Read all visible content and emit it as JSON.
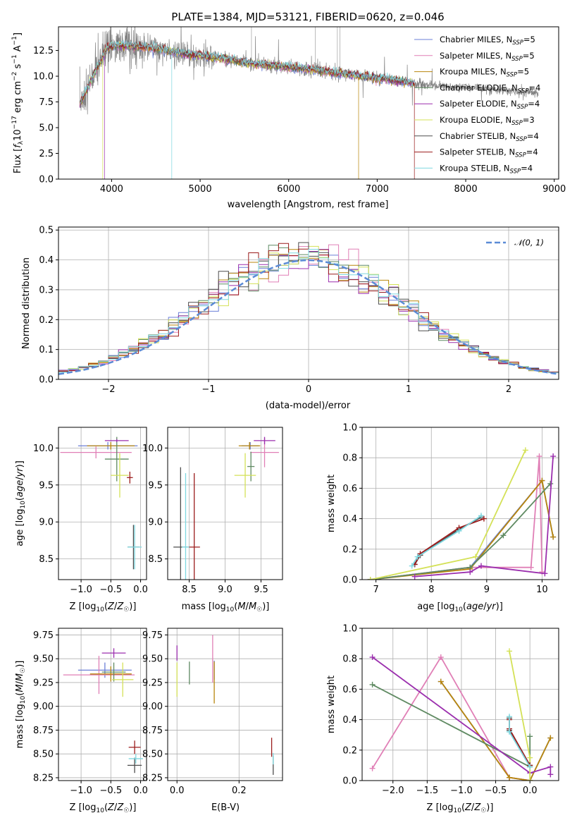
{
  "figure": {
    "title": "PLATE=1384, MJD=53121, FIBERID=0620, z=0.046",
    "legend": [
      {
        "label": "Chabrier MILES, N",
        "sub": "SSP",
        "suffix": "=5",
        "color": "#6b7fd7"
      },
      {
        "label": "Salpeter MILES, N",
        "sub": "SSP",
        "suffix": "=5",
        "color": "#e07fb6"
      },
      {
        "label": "Kroupa MILES, N",
        "sub": "SSP",
        "suffix": "=5",
        "color": "#b8860b"
      },
      {
        "label": "Chabrier ELODIE, N",
        "sub": "SSP",
        "suffix": "=4",
        "color": "#5f8a62"
      },
      {
        "label": "Salpeter ELODIE, N",
        "sub": "SSP",
        "suffix": "=4",
        "color": "#9b2fae"
      },
      {
        "label": "Kroupa ELODIE, N",
        "sub": "SSP",
        "suffix": "=3",
        "color": "#d4e157"
      },
      {
        "label": "Chabrier STELIB, N",
        "sub": "SSP",
        "suffix": "=4",
        "color": "#4d4d4d"
      },
      {
        "label": "Salpeter STELIB, N",
        "sub": "SSP",
        "suffix": "=4",
        "color": "#9b1c1c"
      },
      {
        "label": "Kroupa STELIB, N",
        "sub": "SSP",
        "suffix": "=4",
        "color": "#7fd8e0"
      }
    ],
    "hist_legend": "𝒩(0, 1)"
  },
  "chart_data": [
    {
      "type": "line",
      "id": "spectrum",
      "title": "PLATE=1384, MJD=53121, FIBERID=0620, z=0.046",
      "xlabel": "wavelength [Angstrom, rest frame]",
      "ylabel": "Flux [f_λ 10^-17 erg cm^-2 s^-1 A^-1]",
      "xlim": [
        3400,
        9050
      ],
      "ylim": [
        0,
        14.8
      ],
      "xticks": [
        4000,
        5000,
        6000,
        7000,
        8000,
        9000
      ],
      "yticks": [
        0.0,
        2.5,
        5.0,
        7.5,
        10.0,
        12.5
      ],
      "data_color": "#808080",
      "data_range": [
        3640,
        8820
      ],
      "model_range": [
        3640,
        7420
      ],
      "shape": {
        "x": [
          3640,
          3800,
          3950,
          4100,
          4400,
          4800,
          5200,
          5600,
          6000,
          6400,
          6800,
          7200,
          7420,
          7800,
          8200,
          8600,
          8820
        ],
        "y": [
          7.2,
          10.2,
          12.8,
          13.0,
          12.8,
          12.2,
          11.8,
          11.2,
          10.9,
          10.5,
          10.0,
          9.6,
          9.3,
          9.0,
          8.8,
          8.5,
          8.4
        ]
      },
      "grid": false,
      "legend_position": "upper right"
    },
    {
      "type": "histogram",
      "id": "residuals",
      "xlabel": "(data-model)/error",
      "ylabel": "Normed distribution",
      "xlim": [
        -2.5,
        2.5
      ],
      "ylim": [
        0,
        0.51
      ],
      "xticks": [
        -2,
        -1,
        0,
        1,
        2
      ],
      "yticks": [
        0.0,
        0.1,
        0.2,
        0.3,
        0.4,
        0.5
      ],
      "bin_width": 0.1,
      "reference_curve": "normal(0,1)",
      "reference_color": "#5b8bd6",
      "grid": true,
      "legend_position": "upper right"
    },
    {
      "type": "scatter",
      "id": "age-vs-Z",
      "xlabel": "Z [log10(Z/Z☉)]",
      "ylabel": "age [log10(age/yr)]",
      "xlim": [
        -1.38,
        0.1
      ],
      "ylim": [
        8.22,
        10.28
      ],
      "xticks": [
        -1.0,
        -0.5,
        0.0
      ],
      "yticks": [
        8.5,
        9.0,
        9.5,
        10.0
      ],
      "grid": true,
      "points": [
        {
          "series": "Chabrier MILES",
          "x": -0.55,
          "xerr": 0.5,
          "y": 10.03,
          "yerr": 0.05
        },
        {
          "series": "Salpeter MILES",
          "x": -0.75,
          "xerr": 0.6,
          "y": 9.94,
          "yerr": 0.08
        },
        {
          "series": "Kroupa MILES",
          "x": -0.5,
          "xerr": 0.4,
          "y": 10.03,
          "yerr": 0.05
        },
        {
          "series": "Chabrier ELODIE",
          "x": -0.4,
          "xerr": 0.2,
          "y": 9.85,
          "yerr": 0.3
        },
        {
          "series": "Salpeter ELODIE",
          "x": -0.4,
          "xerr": 0.2,
          "y": 10.1,
          "yerr": 0.02
        },
        {
          "series": "Kroupa ELODIE",
          "x": -0.35,
          "xerr": 0.15,
          "y": 9.63,
          "yerr": 0.3
        },
        {
          "series": "Chabrier STELIB",
          "x": -0.12,
          "xerr": 0.1,
          "y": 8.66,
          "yerr": 0.3
        },
        {
          "series": "Salpeter STELIB",
          "x": -0.18,
          "xerr": 0.05,
          "y": 9.6,
          "yerr": 0.08
        },
        {
          "series": "Kroupa STELIB",
          "x": -0.1,
          "xerr": 0.12,
          "y": 8.66,
          "yerr": 0.3
        }
      ]
    },
    {
      "type": "scatter",
      "id": "age-vs-mass",
      "xlabel": "mass [log10(M/M☉)]",
      "ylabel": "",
      "xlim": [
        8.2,
        9.8
      ],
      "ylim": [
        8.22,
        10.28
      ],
      "xticks": [
        8.5,
        9.0,
        9.5
      ],
      "yticks": [
        8.5,
        9.0,
        9.5,
        10.0
      ],
      "grid": true,
      "points": [
        {
          "series": "Chabrier MILES",
          "x": 9.35,
          "xerr": 0.12,
          "y": 10.03,
          "yerr": 0.05
        },
        {
          "series": "Salpeter MILES",
          "x": 9.55,
          "xerr": 0.2,
          "y": 9.94,
          "yerr": 0.2
        },
        {
          "series": "Kroupa MILES",
          "x": 9.34,
          "xerr": 0.15,
          "y": 10.03,
          "yerr": 0.05
        },
        {
          "series": "Chabrier ELODIE",
          "x": 9.36,
          "xerr": 0.05,
          "y": 9.75,
          "yerr": 0.2
        },
        {
          "series": "Salpeter ELODIE",
          "x": 9.55,
          "xerr": 0.15,
          "y": 10.1,
          "yerr": 0.05
        },
        {
          "series": "Kroupa ELODIE",
          "x": 9.28,
          "xerr": 0.15,
          "y": 9.63,
          "yerr": 0.3
        },
        {
          "series": "Chabrier STELIB",
          "x": 8.38,
          "xerr": 0.1,
          "y": 8.66,
          "yerr": 1.08
        },
        {
          "series": "Salpeter STELIB",
          "x": 8.57,
          "xerr": 0.08,
          "y": 8.66,
          "yerr": 1.0
        },
        {
          "series": "Kroupa STELIB",
          "x": 8.45,
          "xerr": 0.05,
          "y": 8.66,
          "yerr": 1.0
        }
      ]
    },
    {
      "type": "line",
      "id": "massweight-vs-age",
      "xlabel": "age [log10(age/yr)]",
      "ylabel": "mass weight",
      "xlim": [
        6.75,
        10.3
      ],
      "ylim": [
        0.0,
        1.0
      ],
      "xticks": [
        7,
        8,
        9,
        10
      ],
      "yticks": [
        0.0,
        0.2,
        0.4,
        0.6,
        0.8,
        1.0
      ],
      "grid": true,
      "series": [
        {
          "name": "Chabrier MILES",
          "x": [
            6.9,
            8.7,
            10.0,
            10.2
          ],
          "y": [
            0.0,
            0.08,
            0.65,
            0.28
          ]
        },
        {
          "name": "Salpeter MILES",
          "x": [
            6.9,
            8.7,
            9.8,
            9.95,
            10.0
          ],
          "y": [
            0.0,
            0.08,
            0.08,
            0.81,
            0.05
          ]
        },
        {
          "name": "Kroupa MILES",
          "x": [
            6.9,
            8.7,
            10.0,
            10.2
          ],
          "y": [
            0.0,
            0.07,
            0.65,
            0.28
          ]
        },
        {
          "name": "Chabrier ELODIE",
          "x": [
            6.9,
            8.7,
            9.3,
            10.15
          ],
          "y": [
            0.0,
            0.08,
            0.29,
            0.63
          ]
        },
        {
          "name": "Salpeter ELODIE",
          "x": [
            7.7,
            8.7,
            8.9,
            10.05,
            10.2
          ],
          "y": [
            0.02,
            0.05,
            0.09,
            0.04,
            0.81
          ]
        },
        {
          "name": "Kroupa ELODIE",
          "x": [
            6.9,
            8.8,
            9.7
          ],
          "y": [
            0.0,
            0.15,
            0.85
          ]
        },
        {
          "name": "Chabrier STELIB",
          "x": [
            7.7,
            7.8,
            8.5,
            8.9
          ],
          "y": [
            0.1,
            0.16,
            0.33,
            0.41
          ]
        },
        {
          "name": "Salpeter STELIB",
          "x": [
            7.7,
            7.8,
            8.5,
            8.95
          ],
          "y": [
            0.1,
            0.17,
            0.34,
            0.4
          ]
        },
        {
          "name": "Kroupa STELIB",
          "x": [
            7.65,
            7.75,
            8.5,
            8.9
          ],
          "y": [
            0.09,
            0.15,
            0.32,
            0.42
          ]
        }
      ]
    },
    {
      "type": "scatter",
      "id": "mass-vs-Z",
      "xlabel": "Z [log10(Z/Z☉)]",
      "ylabel": "mass [log10(M/M☉)]",
      "xlim": [
        -1.38,
        0.1
      ],
      "ylim": [
        8.22,
        9.82
      ],
      "xticks": [
        -1.0,
        -0.5,
        0.0
      ],
      "yticks": [
        8.25,
        8.5,
        8.75,
        9.0,
        9.25,
        9.5,
        9.75
      ],
      "grid": true,
      "points": [
        {
          "series": "Chabrier MILES",
          "x": -0.6,
          "xerr": 0.45,
          "y": 9.38,
          "yerr": 0.08
        },
        {
          "series": "Salpeter MILES",
          "x": -0.7,
          "xerr": 0.6,
          "y": 9.33,
          "yerr": 0.2
        },
        {
          "series": "Kroupa MILES",
          "x": -0.5,
          "xerr": 0.35,
          "y": 9.34,
          "yerr": 0.08
        },
        {
          "series": "Chabrier ELODIE",
          "x": -0.45,
          "xerr": 0.2,
          "y": 9.36,
          "yerr": 0.1
        },
        {
          "series": "Salpeter ELODIE",
          "x": -0.45,
          "xerr": 0.2,
          "y": 9.56,
          "yerr": 0.05
        },
        {
          "series": "Kroupa ELODIE",
          "x": -0.3,
          "xerr": 0.18,
          "y": 9.28,
          "yerr": 0.18
        },
        {
          "series": "Chabrier STELIB",
          "x": -0.1,
          "xerr": 0.12,
          "y": 8.38,
          "yerr": 0.08
        },
        {
          "series": "Salpeter STELIB",
          "x": -0.1,
          "xerr": 0.1,
          "y": 8.57,
          "yerr": 0.07
        },
        {
          "series": "Kroupa STELIB",
          "x": -0.08,
          "xerr": 0.12,
          "y": 8.45,
          "yerr": 0.05
        }
      ]
    },
    {
      "type": "scatter",
      "id": "mass-vs-ebv",
      "xlabel": "E(B-V)",
      "ylabel": "",
      "xlim": [
        -0.03,
        0.34
      ],
      "ylim": [
        8.22,
        9.82
      ],
      "xticks": [
        0.0,
        0.2
      ],
      "yticks": [
        8.25,
        8.5,
        8.75,
        9.0,
        9.25,
        9.5,
        9.75
      ],
      "grid": true,
      "points": [
        {
          "series": "Chabrier MILES",
          "x": 0.12,
          "xerr": 0.0,
          "y": 9.38,
          "yerr": 0.1
        },
        {
          "series": "Salpeter MILES",
          "x": 0.115,
          "xerr": 0.0,
          "y": 9.5,
          "yerr": 0.25
        },
        {
          "series": "Kroupa MILES",
          "x": 0.12,
          "xerr": 0.0,
          "y": 9.25,
          "yerr": 0.22
        },
        {
          "series": "Chabrier ELODIE",
          "x": 0.04,
          "xerr": 0.0,
          "y": 9.35,
          "yerr": 0.12
        },
        {
          "series": "Salpeter ELODIE",
          "x": 0.0,
          "xerr": 0.0,
          "y": 9.56,
          "yerr": 0.08
        },
        {
          "series": "Kroupa ELODIE",
          "x": 0.0,
          "xerr": 0.0,
          "y": 9.28,
          "yerr": 0.18
        },
        {
          "series": "Chabrier STELIB",
          "x": 0.31,
          "xerr": 0.0,
          "y": 8.38,
          "yerr": 0.1
        },
        {
          "series": "Salpeter STELIB",
          "x": 0.305,
          "xerr": 0.0,
          "y": 8.57,
          "yerr": 0.1
        },
        {
          "series": "Kroupa STELIB",
          "x": 0.31,
          "xerr": 0.0,
          "y": 8.45,
          "yerr": 0.06
        }
      ]
    },
    {
      "type": "line",
      "id": "massweight-vs-Z",
      "xlabel": "Z [log10(Z/Z☉)]",
      "ylabel": "mass weight",
      "xlim": [
        -2.45,
        0.42
      ],
      "ylim": [
        0.0,
        1.0
      ],
      "xticks": [
        -2.0,
        -1.5,
        -1.0,
        -0.5,
        0.0
      ],
      "yticks": [
        0.0,
        0.2,
        0.4,
        0.6,
        0.8,
        1.0
      ],
      "grid": true,
      "series": [
        {
          "name": "Chabrier MILES",
          "x": [
            -1.3,
            -0.3,
            0.0,
            0.3
          ],
          "y": [
            0.65,
            0.02,
            0.0,
            0.28
          ]
        },
        {
          "name": "Salpeter MILES",
          "x": [
            -2.3,
            -1.3,
            -0.3,
            0.0
          ],
          "y": [
            0.08,
            0.81,
            0.02,
            0.0
          ]
        },
        {
          "name": "Kroupa MILES",
          "x": [
            -1.3,
            -0.3,
            0.0,
            0.3
          ],
          "y": [
            0.65,
            0.02,
            0.0,
            0.28
          ]
        },
        {
          "name": "Chabrier ELODIE",
          "x": [
            -2.3,
            0.0,
            0.0
          ],
          "y": [
            0.63,
            0.09,
            0.29
          ]
        },
        {
          "name": "Salpeter ELODIE",
          "x": [
            -2.3,
            0.0,
            0.3,
            0.3
          ],
          "y": [
            0.81,
            0.05,
            0.09,
            0.04
          ]
        },
        {
          "name": "Kroupa ELODIE",
          "x": [
            -0.3,
            0.0,
            0.0
          ],
          "y": [
            0.85,
            0.15,
            0.0
          ]
        },
        {
          "name": "Chabrier STELIB",
          "x": [
            -0.3,
            -0.3,
            0.0
          ],
          "y": [
            0.41,
            0.33,
            0.1
          ]
        },
        {
          "name": "Salpeter STELIB",
          "x": [
            -0.3,
            -0.3,
            0.0
          ],
          "y": [
            0.4,
            0.34,
            0.1
          ]
        },
        {
          "name": "Kroupa STELIB",
          "x": [
            -0.3,
            -0.3,
            0.0
          ],
          "y": [
            0.42,
            0.32,
            0.09
          ]
        }
      ]
    }
  ]
}
